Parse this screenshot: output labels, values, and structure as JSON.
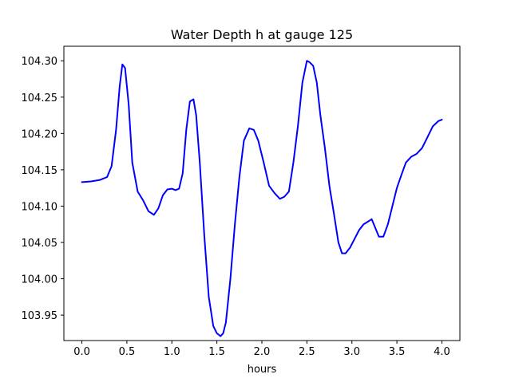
{
  "chart_data": {
    "type": "line",
    "title": "Water Depth h at gauge 125",
    "xlabel": "hours",
    "ylabel": "",
    "xlim": [
      -0.2,
      4.2
    ],
    "ylim": [
      103.915,
      104.32
    ],
    "grid": false,
    "legend": "none",
    "xticks": [
      "0.0",
      "0.5",
      "1.0",
      "1.5",
      "2.0",
      "2.5",
      "3.0",
      "3.5",
      "4.0"
    ],
    "xtick_values": [
      0,
      0.5,
      1,
      1.5,
      2,
      2.5,
      3,
      3.5,
      4
    ],
    "yticks": [
      "103.95",
      "104.00",
      "104.05",
      "104.10",
      "104.15",
      "104.20",
      "104.25",
      "104.30"
    ],
    "ytick_values": [
      103.95,
      104.0,
      104.05,
      104.1,
      104.15,
      104.2,
      104.25,
      104.3
    ],
    "series": [
      {
        "color": "#0000ff",
        "x": [
          0.0,
          0.1,
          0.2,
          0.28,
          0.33,
          0.38,
          0.42,
          0.45,
          0.48,
          0.52,
          0.56,
          0.62,
          0.68,
          0.74,
          0.8,
          0.85,
          0.9,
          0.95,
          1.0,
          1.04,
          1.08,
          1.12,
          1.16,
          1.2,
          1.24,
          1.27,
          1.31,
          1.36,
          1.41,
          1.46,
          1.5,
          1.54,
          1.57,
          1.6,
          1.65,
          1.7,
          1.75,
          1.8,
          1.86,
          1.91,
          1.96,
          2.02,
          2.08,
          2.14,
          2.2,
          2.25,
          2.3,
          2.35,
          2.4,
          2.45,
          2.5,
          2.53,
          2.57,
          2.61,
          2.65,
          2.7,
          2.75,
          2.8,
          2.85,
          2.89,
          2.93,
          2.98,
          3.03,
          3.08,
          3.13,
          3.17,
          3.22,
          3.26,
          3.3,
          3.35,
          3.4,
          3.45,
          3.5,
          3.55,
          3.6,
          3.66,
          3.72,
          3.78,
          3.84,
          3.9,
          3.96,
          4.0
        ],
        "values": [
          104.133,
          104.134,
          104.136,
          104.14,
          104.155,
          104.205,
          104.265,
          104.295,
          104.29,
          104.24,
          104.16,
          104.12,
          104.108,
          104.093,
          104.088,
          104.097,
          104.115,
          104.123,
          104.124,
          104.122,
          104.124,
          104.145,
          104.205,
          104.244,
          104.247,
          104.225,
          104.16,
          104.06,
          103.975,
          103.935,
          103.925,
          103.921,
          103.925,
          103.94,
          104.0,
          104.075,
          104.14,
          104.19,
          104.207,
          104.205,
          104.19,
          104.16,
          104.128,
          104.118,
          104.11,
          104.113,
          104.12,
          104.16,
          104.21,
          104.27,
          104.3,
          104.298,
          104.293,
          104.27,
          104.225,
          104.18,
          104.128,
          104.09,
          104.05,
          104.035,
          104.035,
          104.043,
          104.055,
          104.067,
          104.075,
          104.078,
          104.082,
          104.07,
          104.058,
          104.058,
          104.075,
          104.1,
          104.125,
          104.143,
          104.16,
          104.168,
          104.172,
          104.18,
          104.195,
          104.21,
          104.217,
          104.219
        ]
      }
    ]
  }
}
